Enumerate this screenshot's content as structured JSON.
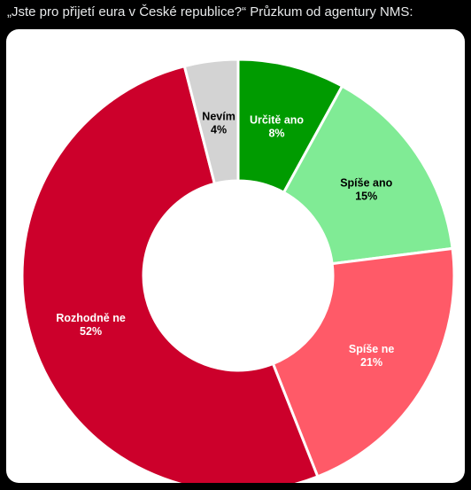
{
  "post": {
    "text": "„Jste pro přijetí eura v České republice?“ Průzkum od agentury NMS:"
  },
  "chart_data": {
    "type": "pie",
    "donut": true,
    "title": "",
    "slices": [
      {
        "label": "Určitě ano",
        "value": 8,
        "value_label": "8%",
        "color": "#009b00",
        "text_color": "#ffffff"
      },
      {
        "label": "Spíše ano",
        "value": 15,
        "value_label": "15%",
        "color": "#80eb95",
        "text_color": "#000000"
      },
      {
        "label": "Spíše ne",
        "value": 21,
        "value_label": "21%",
        "color": "#ff5a68",
        "text_color": "#ffffff"
      },
      {
        "label": "Rozhodně ne",
        "value": 52,
        "value_label": "52%",
        "color": "#cc002b",
        "text_color": "#ffffff"
      },
      {
        "label": "Nevím",
        "value": 4,
        "value_label": "4%",
        "color": "#d3d3d3",
        "text_color": "#000000"
      }
    ]
  }
}
